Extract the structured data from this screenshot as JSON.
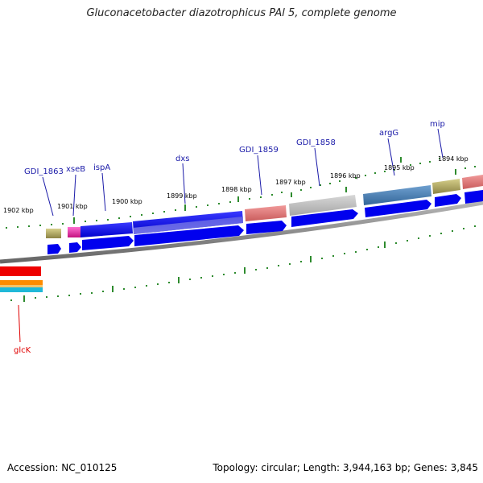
{
  "title": "Gluconacetobacter diazotrophicus PAl 5, complete genome",
  "footer": {
    "accession": "Accession: NC_010125",
    "topology": "Topology: circular; Length: 3,944,163 bp; Genes: 3,845"
  },
  "scale_labels": [
    "1902 kbp",
    "1901 kbp",
    "1900 kbp",
    "1899 kbp",
    "1898 kbp",
    "1897 kbp",
    "1896 kbp",
    "1895 kbp",
    "1894 kbp"
  ],
  "gene_labels": [
    "GDI_1863",
    "xseB",
    "ispA",
    "dxs",
    "GDI_1859",
    "GDI_1858",
    "argG",
    "mip",
    "glcK"
  ],
  "colors": {
    "cds_forward": "#0000ee",
    "backbone": "#888888",
    "tick": "#2e8b2e",
    "label": "#1a1aa8",
    "label_highlight": "#e00000"
  }
}
